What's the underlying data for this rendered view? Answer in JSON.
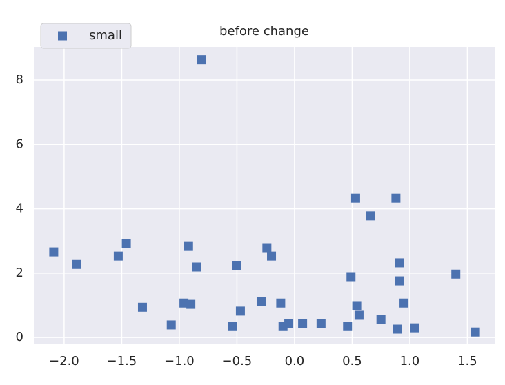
{
  "chart_data": {
    "type": "scatter",
    "title": "before change",
    "series": [
      {
        "name": "small",
        "color": "#4c72b0",
        "marker": "square",
        "x": [
          -2.09,
          -1.89,
          -1.53,
          -1.46,
          -1.32,
          -1.07,
          -0.96,
          -0.92,
          -0.9,
          -0.85,
          -0.81,
          -0.54,
          -0.5,
          -0.47,
          -0.29,
          -0.24,
          -0.2,
          -0.12,
          -0.1,
          -0.05,
          0.07,
          0.23,
          0.46,
          0.49,
          0.53,
          0.54,
          0.56,
          0.66,
          0.75,
          0.89,
          0.88,
          0.91,
          0.91,
          0.95,
          1.04,
          1.4,
          1.57
        ],
        "values": [
          2.66,
          2.27,
          2.53,
          2.92,
          0.94,
          0.39,
          1.07,
          2.83,
          1.03,
          2.19,
          8.63,
          0.34,
          2.23,
          0.82,
          1.12,
          2.79,
          2.53,
          1.07,
          0.34,
          0.43,
          0.43,
          0.43,
          0.34,
          1.89,
          4.33,
          0.99,
          0.69,
          3.78,
          0.56,
          0.26,
          4.33,
          2.32,
          1.76,
          1.07,
          0.3,
          1.97,
          0.17
        ]
      }
    ],
    "xlim": [
      -2.257,
      1.737
    ],
    "ylim": [
      -0.19,
      9.03
    ],
    "xticks": [
      {
        "value": -2.0,
        "label": "−2.0"
      },
      {
        "value": -1.5,
        "label": "−1.5"
      },
      {
        "value": -1.0,
        "label": "−1.0"
      },
      {
        "value": -0.5,
        "label": "−0.5"
      },
      {
        "value": 0.0,
        "label": "0.0"
      },
      {
        "value": 0.5,
        "label": "0.5"
      },
      {
        "value": 1.0,
        "label": "1.0"
      },
      {
        "value": 1.5,
        "label": "1.5"
      }
    ],
    "yticks": [
      0,
      2,
      4,
      6,
      8
    ],
    "grid": true,
    "legend": "upper-left"
  }
}
